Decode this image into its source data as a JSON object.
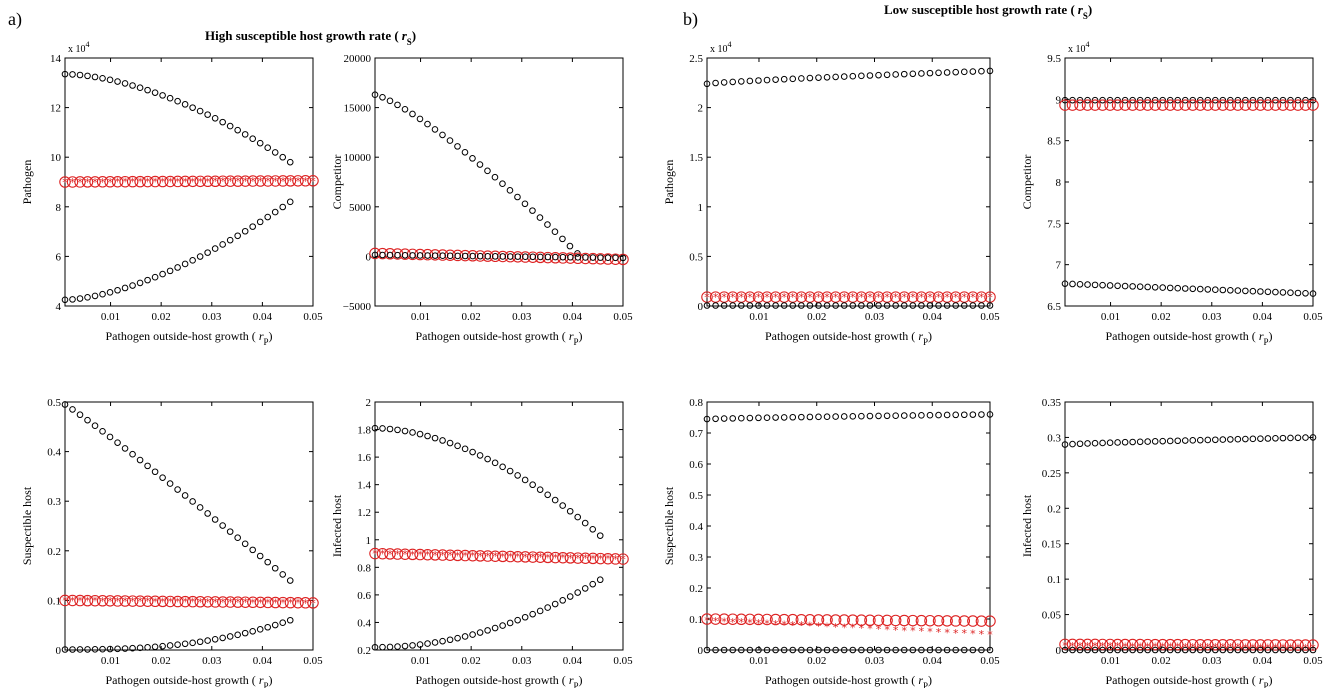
{
  "panels": {
    "a": {
      "label": "a)",
      "title": "High susceptible host growth rate (",
      "title_sym": "r",
      "title_sub": "S",
      "title_close": ")"
    },
    "b": {
      "label": "b)",
      "title": "Low susceptible host growth rate (",
      "title_sym": "r",
      "title_sub": "S",
      "title_close": ")"
    }
  },
  "xlabel": {
    "text": "Pathogen  outside-host growth (",
    "sym": "r",
    "sub": "P",
    "close": ")"
  },
  "colors": {
    "stable": "#000000",
    "unstable": "#dd2222"
  },
  "chart_data": [
    {
      "type": "scatter",
      "panel": "a",
      "ylabel": "Pathogen",
      "xlim": [
        0.001,
        0.05
      ],
      "ylim": [
        4,
        14
      ],
      "yticks": [
        "4",
        "6",
        "8",
        "10",
        "12",
        "14"
      ],
      "yticks_val": [
        4,
        6,
        8,
        10,
        12,
        14
      ],
      "xticks": [
        "0.01",
        "0.02",
        "0.03",
        "0.04",
        "0.05"
      ],
      "xticks_val": [
        0.01,
        0.02,
        0.03,
        0.04,
        0.05
      ],
      "exponent": "x 10",
      "exponent_power": "4",
      "series": [
        {
          "marker": "o",
          "color": "stable",
          "x_start": 0.001,
          "x_end": 0.0455,
          "n": 31,
          "y_start": 13.35,
          "y_end": 9.8,
          "curve": 1.7
        },
        {
          "marker": "o",
          "color": "stable",
          "x_start": 0.001,
          "x_end": 0.0455,
          "n": 31,
          "y_start": 4.25,
          "y_end": 8.2,
          "curve": 1.6
        },
        {
          "marker": "O",
          "color": "unstable",
          "x_start": 0.001,
          "x_end": 0.05,
          "n": 34,
          "y_start": 9.0,
          "y_end": 9.05,
          "curve": 1
        },
        {
          "marker": "*",
          "color": "unstable",
          "x_start": 0.001,
          "x_end": 0.05,
          "n": 34,
          "y_start": 9.0,
          "y_end": 9.05,
          "curve": 1
        }
      ]
    },
    {
      "type": "scatter",
      "panel": "a",
      "ylabel": "Competitor",
      "xlim": [
        0.001,
        0.05
      ],
      "ylim": [
        -5000,
        20000
      ],
      "yticks": [
        "-5000",
        "0",
        "5000",
        "10000",
        "15000",
        "20000"
      ],
      "yticks_val": [
        -5000,
        0,
        5000,
        10000,
        15000,
        20000
      ],
      "xticks": [
        "0.01",
        "0.02",
        "0.03",
        "0.04",
        "0.05"
      ],
      "xticks_val": [
        0.01,
        0.02,
        0.03,
        0.04,
        0.05
      ],
      "series": [
        {
          "marker": "o",
          "color": "stable",
          "x_start": 0.001,
          "x_end": 0.041,
          "n": 28,
          "y_start": 16300,
          "y_end": 300,
          "curve": 1.25
        },
        {
          "marker": "O",
          "color": "unstable",
          "x_start": 0.001,
          "x_end": 0.05,
          "n": 34,
          "y_start": 300,
          "y_end": -300,
          "curve": 1
        },
        {
          "marker": "o",
          "color": "stable",
          "x_start": 0.001,
          "x_end": 0.05,
          "n": 34,
          "y_start": 150,
          "y_end": -150,
          "curve": 1
        }
      ]
    },
    {
      "type": "scatter",
      "panel": "a",
      "ylabel": "Suspectible host",
      "xlim": [
        0.001,
        0.05
      ],
      "ylim": [
        0,
        0.5
      ],
      "yticks": [
        "0",
        "0.1",
        "0.2",
        "0.3",
        "0.4",
        "0.5"
      ],
      "yticks_val": [
        0,
        0.1,
        0.2,
        0.3,
        0.4,
        0.5
      ],
      "xticks": [
        "0.01",
        "0.02",
        "0.03",
        "0.04",
        "0.05"
      ],
      "xticks_val": [
        0.01,
        0.02,
        0.03,
        0.04,
        0.05
      ],
      "series": [
        {
          "marker": "o",
          "color": "stable",
          "x_start": 0.001,
          "x_end": 0.0455,
          "n": 31,
          "y_start": 0.495,
          "y_end": 0.14,
          "curve": 1.05
        },
        {
          "marker": "o",
          "color": "stable",
          "x_start": 0.001,
          "x_end": 0.0455,
          "n": 31,
          "y_start": 0.001,
          "y_end": 0.06,
          "curve": 2.6
        },
        {
          "marker": "O",
          "color": "unstable",
          "x_start": 0.001,
          "x_end": 0.05,
          "n": 34,
          "y_start": 0.1,
          "y_end": 0.095,
          "curve": 1
        },
        {
          "marker": "*",
          "color": "unstable",
          "x_start": 0.001,
          "x_end": 0.05,
          "n": 34,
          "y_start": 0.1,
          "y_end": 0.095,
          "curve": 1
        }
      ]
    },
    {
      "type": "scatter",
      "panel": "a",
      "ylabel": "Infected host",
      "xlim": [
        0.001,
        0.05
      ],
      "ylim": [
        0.2,
        2
      ],
      "yticks": [
        "0.2",
        "0.4",
        "0.6",
        "0.8",
        "1",
        "1.2",
        "1.4",
        "1.6",
        "1.8",
        "2"
      ],
      "yticks_val": [
        0.2,
        0.4,
        0.6,
        0.8,
        1,
        1.2,
        1.4,
        1.6,
        1.8,
        2
      ],
      "xticks": [
        "0.01",
        "0.02",
        "0.03",
        "0.04",
        "0.05"
      ],
      "xticks_val": [
        0.01,
        0.02,
        0.03,
        0.04,
        0.05
      ],
      "series": [
        {
          "marker": "o",
          "color": "stable",
          "x_start": 0.001,
          "x_end": 0.0455,
          "n": 31,
          "y_start": 1.81,
          "y_end": 1.03,
          "curve": 1.8
        },
        {
          "marker": "o",
          "color": "stable",
          "x_start": 0.001,
          "x_end": 0.0455,
          "n": 31,
          "y_start": 0.22,
          "y_end": 0.71,
          "curve": 2.0
        },
        {
          "marker": "O",
          "color": "unstable",
          "x_start": 0.001,
          "x_end": 0.05,
          "n": 34,
          "y_start": 0.9,
          "y_end": 0.86,
          "curve": 1
        },
        {
          "marker": "*",
          "color": "unstable",
          "x_start": 0.001,
          "x_end": 0.05,
          "n": 34,
          "y_start": 0.9,
          "y_end": 0.86,
          "curve": 1
        }
      ]
    },
    {
      "type": "scatter",
      "panel": "b",
      "ylabel": "Pathogen",
      "xlim": [
        0.001,
        0.05
      ],
      "ylim": [
        0,
        2.5
      ],
      "yticks": [
        "0",
        "0.5",
        "1",
        "1.5",
        "2",
        "2.5"
      ],
      "yticks_val": [
        0,
        0.5,
        1,
        1.5,
        2,
        2.5
      ],
      "xticks": [
        "0.01",
        "0.02",
        "0.03",
        "0.04",
        "0.05"
      ],
      "xticks_val": [
        0.01,
        0.02,
        0.03,
        0.04,
        0.05
      ],
      "exponent": "x 10",
      "exponent_power": "4",
      "series": [
        {
          "marker": "o",
          "color": "stable",
          "x_start": 0.001,
          "x_end": 0.05,
          "n": 34,
          "y_start": 2.24,
          "y_end": 2.37,
          "curve": 0.8
        },
        {
          "marker": "O",
          "color": "unstable",
          "x_start": 0.001,
          "x_end": 0.05,
          "n": 34,
          "y_start": 0.09,
          "y_end": 0.09,
          "curve": 1
        },
        {
          "marker": "*",
          "color": "unstable",
          "x_start": 0.001,
          "x_end": 0.05,
          "n": 34,
          "y_start": 0.09,
          "y_end": 0.09,
          "curve": 1
        },
        {
          "marker": "o",
          "color": "stable",
          "x_start": 0.001,
          "x_end": 0.05,
          "n": 34,
          "y_start": 0.005,
          "y_end": 0.005,
          "curve": 1
        }
      ]
    },
    {
      "type": "scatter",
      "panel": "b",
      "ylabel": "Competitor",
      "xlim": [
        0.001,
        0.05
      ],
      "ylim": [
        6.5,
        9.5
      ],
      "yticks": [
        "6.5",
        "7",
        "7.5",
        "8",
        "8.5",
        "9",
        "9.5"
      ],
      "yticks_val": [
        6.5,
        7,
        7.5,
        8,
        8.5,
        9,
        9.5
      ],
      "xticks": [
        "0.01",
        "0.02",
        "0.03",
        "0.04",
        "0.05"
      ],
      "xticks_val": [
        0.01,
        0.02,
        0.03,
        0.04,
        0.05
      ],
      "exponent": "x 10",
      "exponent_power": "4",
      "series": [
        {
          "marker": "o",
          "color": "stable",
          "x_start": 0.001,
          "x_end": 0.05,
          "n": 34,
          "y_start": 8.99,
          "y_end": 8.99,
          "curve": 1
        },
        {
          "marker": "O",
          "color": "unstable",
          "x_start": 0.001,
          "x_end": 0.05,
          "n": 34,
          "y_start": 8.93,
          "y_end": 8.93,
          "curve": 1
        },
        {
          "marker": "o",
          "color": "stable",
          "x_start": 0.001,
          "x_end": 0.05,
          "n": 34,
          "y_start": 6.77,
          "y_end": 6.65,
          "curve": 1
        }
      ]
    },
    {
      "type": "scatter",
      "panel": "b",
      "ylabel": "Suspectible host",
      "xlim": [
        0.001,
        0.05
      ],
      "ylim": [
        0,
        0.8
      ],
      "yticks": [
        "0",
        "0.1",
        "0.2",
        "0.3",
        "0.4",
        "0.5",
        "0.6",
        "0.7",
        "0.8"
      ],
      "yticks_val": [
        0,
        0.1,
        0.2,
        0.3,
        0.4,
        0.5,
        0.6,
        0.7,
        0.8
      ],
      "xticks": [
        "0.01",
        "0.02",
        "0.03",
        "0.04",
        "0.05"
      ],
      "xticks_val": [
        0.01,
        0.02,
        0.03,
        0.04,
        0.05
      ],
      "series": [
        {
          "marker": "o",
          "color": "stable",
          "x_start": 0.001,
          "x_end": 0.05,
          "n": 34,
          "y_start": 0.745,
          "y_end": 0.76,
          "curve": 0.8
        },
        {
          "marker": "O",
          "color": "unstable",
          "x_start": 0.001,
          "x_end": 0.05,
          "n": 34,
          "y_start": 0.1,
          "y_end": 0.093,
          "curve": 1
        },
        {
          "marker": "*",
          "color": "unstable",
          "x_start": 0.001,
          "x_end": 0.05,
          "n": 34,
          "y_start": 0.095,
          "y_end": 0.05,
          "curve": 1
        },
        {
          "marker": "o",
          "color": "stable",
          "x_start": 0.001,
          "x_end": 0.05,
          "n": 34,
          "y_start": 0.0,
          "y_end": 0.0,
          "curve": 1
        }
      ]
    },
    {
      "type": "scatter",
      "panel": "b",
      "ylabel": "Infected host",
      "xlim": [
        0.001,
        0.05
      ],
      "ylim": [
        0,
        0.35
      ],
      "yticks": [
        "0",
        "0.05",
        "0.1",
        "0.15",
        "0.2",
        "0.25",
        "0.3",
        "0.35"
      ],
      "yticks_val": [
        0,
        0.05,
        0.1,
        0.15,
        0.2,
        0.25,
        0.3,
        0.35
      ],
      "xticks": [
        "0.01",
        "0.02",
        "0.03",
        "0.04",
        "0.05"
      ],
      "xticks_val": [
        0.01,
        0.02,
        0.03,
        0.04,
        0.05
      ],
      "series": [
        {
          "marker": "o",
          "color": "stable",
          "x_start": 0.001,
          "x_end": 0.05,
          "n": 34,
          "y_start": 0.29,
          "y_end": 0.3,
          "curve": 0.8
        },
        {
          "marker": "O",
          "color": "unstable",
          "x_start": 0.001,
          "x_end": 0.05,
          "n": 34,
          "y_start": 0.008,
          "y_end": 0.007,
          "curve": 1
        },
        {
          "marker": "*",
          "color": "unstable",
          "x_start": 0.001,
          "x_end": 0.05,
          "n": 34,
          "y_start": 0.006,
          "y_end": 0.003,
          "curve": 1
        },
        {
          "marker": "o",
          "color": "stable",
          "x_start": 0.001,
          "x_end": 0.05,
          "n": 34,
          "y_start": 0.0,
          "y_end": 0.0,
          "curve": 1
        }
      ]
    }
  ]
}
